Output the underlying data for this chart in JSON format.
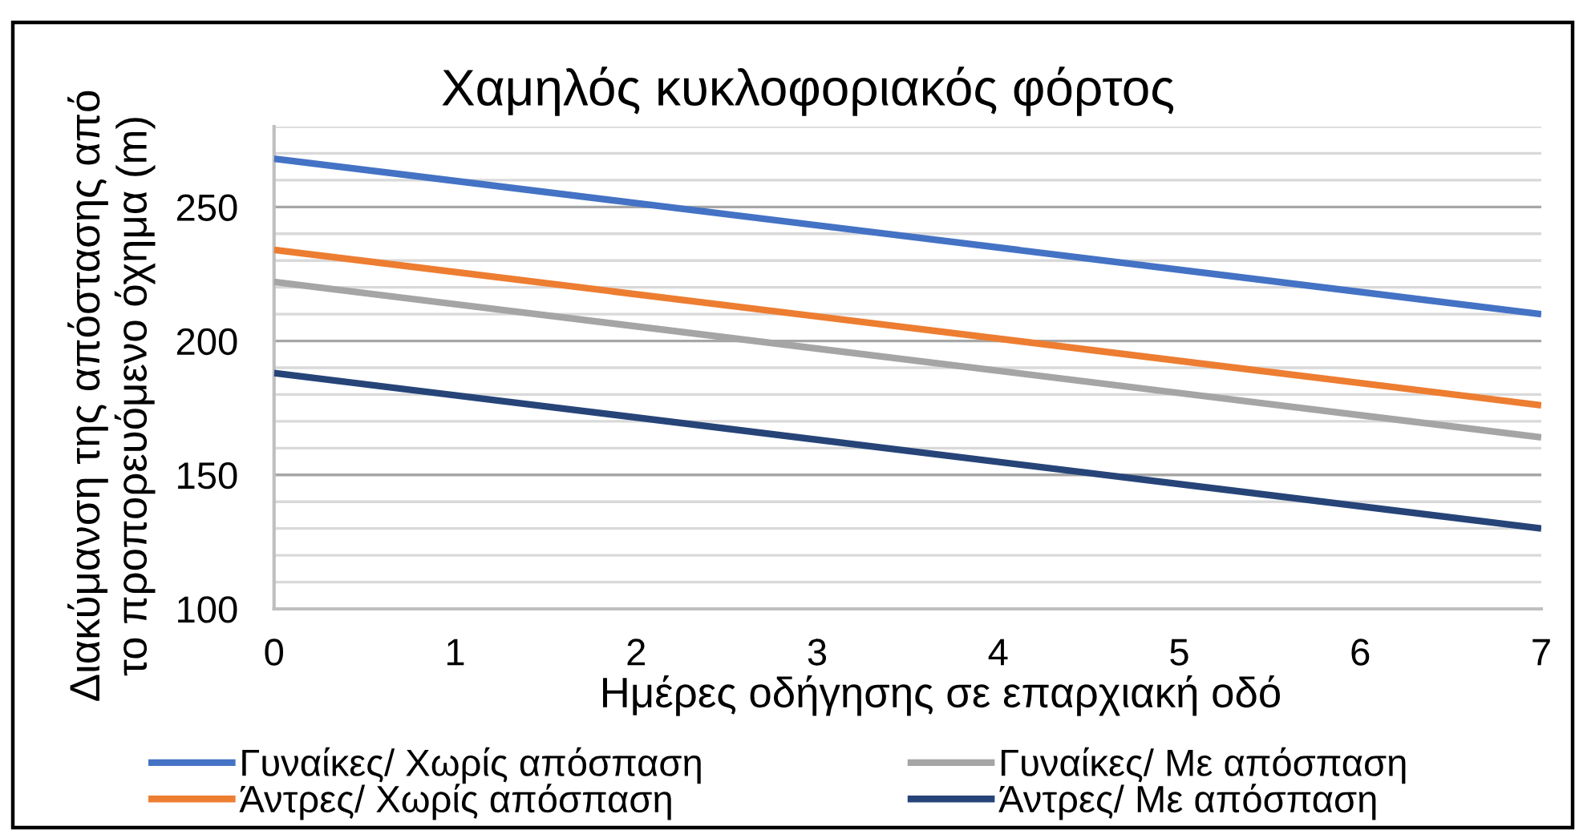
{
  "chart_data": {
    "type": "line",
    "title": "Χαμηλός κυκλοφοριακός φόρτος",
    "xlabel": "Ημέρες οδήγησης σε επαρχιακή οδό",
    "ylabel": "Διακύμανση της απόστασης από\nτο προπορευόμενο όχημα (m)",
    "x": [
      0,
      7
    ],
    "series": [
      {
        "name": "Γυναίκες/ Χωρίς απόσπαση",
        "color": "#4472c4",
        "values": [
          268,
          210
        ]
      },
      {
        "name": "Άντρες/ Χωρίς απόσπαση",
        "color": "#ed7d31",
        "values": [
          234,
          176
        ]
      },
      {
        "name": "Γυναίκες/ Με απόσπαση",
        "color": "#a5a5a5",
        "values": [
          222,
          164
        ]
      },
      {
        "name": "Άντρες/ Με απόσπαση",
        "color": "#264478",
        "values": [
          188,
          130
        ]
      }
    ],
    "xlim": [
      0,
      7
    ],
    "xticks": [
      0,
      1,
      2,
      3,
      4,
      5,
      6,
      7
    ],
    "ylim": [
      100,
      280
    ],
    "yticks": [
      100,
      {
        "value": 110,
        "label": null
      },
      {
        "value": 120,
        "label": null
      },
      {
        "value": 130,
        "label": null
      },
      {
        "value": 140,
        "label": null
      },
      150,
      {
        "value": 160,
        "label": null
      },
      {
        "value": 170,
        "label": null
      },
      {
        "value": 180,
        "label": null
      },
      {
        "value": 190,
        "label": null
      },
      200,
      {
        "value": 210,
        "label": null
      },
      {
        "value": 220,
        "label": null
      },
      {
        "value": 230,
        "label": null
      },
      {
        "value": 240,
        "label": null
      },
      250,
      {
        "value": 260,
        "label": null
      },
      {
        "value": 270,
        "label": null
      },
      {
        "value": 280,
        "label": null
      }
    ],
    "grid": "y",
    "legend": "bottom"
  }
}
